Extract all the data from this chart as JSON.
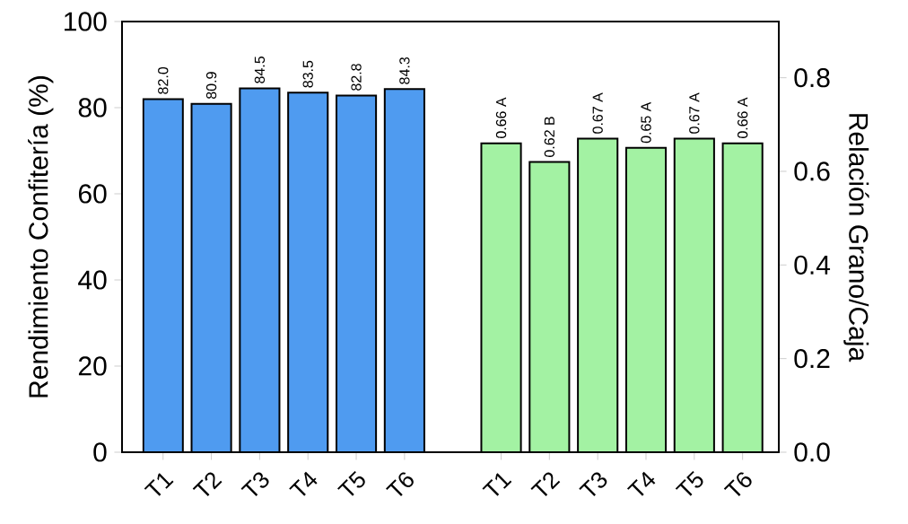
{
  "chart_data": {
    "type": "bar",
    "categories": [
      "T1",
      "T2",
      "T3",
      "T4",
      "T5",
      "T6",
      null,
      "T1",
      "T2",
      "T3",
      "T4",
      "T5",
      "T6"
    ],
    "ylabel": "Rendimiento Confitería (%)",
    "y2label": "Relación Grano/Caja",
    "ylim": [
      0,
      100
    ],
    "yticks": [
      0,
      20,
      40,
      60,
      80,
      100
    ],
    "y2lim": [
      0,
      0.92
    ],
    "y2ticks": [
      {
        "value": 0,
        "label": "0.0"
      },
      0.2,
      0.4,
      0.6,
      0.8
    ],
    "series": [
      {
        "color": "#4f9bf0",
        "axis": "y",
        "values": [
          82.0,
          80.9,
          84.5,
          83.5,
          82.8,
          84.3,
          null,
          null,
          null,
          null,
          null,
          null,
          null
        ],
        "value_labels": [
          "82.0",
          "80.9",
          "84.5",
          "83.5",
          "82.8",
          "84.3",
          null,
          null,
          null,
          null,
          null,
          null,
          null
        ]
      },
      {
        "color": "#a3f2a3",
        "axis": "y2",
        "values": [
          null,
          null,
          null,
          null,
          null,
          null,
          null,
          0.66,
          0.62,
          0.67,
          0.65,
          0.67,
          0.66
        ],
        "value_labels": [
          null,
          null,
          null,
          null,
          null,
          null,
          null,
          "0.66 A",
          "0.62 B",
          "0.67 A",
          "0.65 A",
          "0.67 A",
          "0.66 A"
        ]
      }
    ]
  }
}
